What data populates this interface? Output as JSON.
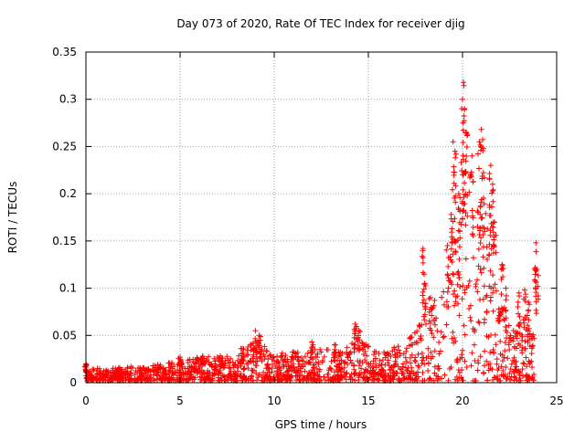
{
  "chart_data": {
    "type": "scatter",
    "title": "Day 073 of 2020, Rate Of TEC Index for receiver djig",
    "xlabel": "GPS time / hours",
    "ylabel": "ROTI / TECUs",
    "xlim": [
      0,
      25
    ],
    "ylim": [
      0,
      0.35
    ],
    "x_ticks": [
      0,
      5,
      10,
      15,
      20,
      25
    ],
    "x_tick_labels": [
      "0",
      "5",
      "10",
      "15",
      "20",
      "25"
    ],
    "y_ticks": [
      0,
      0.05,
      0.1,
      0.15,
      0.2,
      0.25,
      0.3,
      0.35
    ],
    "y_tick_labels": [
      "0",
      "0.05",
      "0.1",
      "0.15",
      "0.2",
      "0.25",
      "0.3",
      "0.35"
    ],
    "grid": true,
    "marker": "+",
    "series": [
      {
        "name": "ROTI",
        "color": "#ff0000",
        "envelope": [
          {
            "x": 0.0,
            "y": 0.012
          },
          {
            "x": 1.0,
            "y": 0.014
          },
          {
            "x": 3.0,
            "y": 0.016
          },
          {
            "x": 5.0,
            "y": 0.02
          },
          {
            "x": 6.5,
            "y": 0.028
          },
          {
            "x": 8.0,
            "y": 0.025
          },
          {
            "x": 9.0,
            "y": 0.045
          },
          {
            "x": 10.0,
            "y": 0.028
          },
          {
            "x": 12.0,
            "y": 0.035
          },
          {
            "x": 13.5,
            "y": 0.035
          },
          {
            "x": 14.5,
            "y": 0.045
          },
          {
            "x": 15.5,
            "y": 0.03
          },
          {
            "x": 17.0,
            "y": 0.04
          },
          {
            "x": 18.0,
            "y": 0.07
          },
          {
            "x": 19.0,
            "y": 0.1
          },
          {
            "x": 19.6,
            "y": 0.15
          },
          {
            "x": 20.0,
            "y": 0.2
          },
          {
            "x": 20.5,
            "y": 0.22
          },
          {
            "x": 21.0,
            "y": 0.2
          },
          {
            "x": 21.5,
            "y": 0.16
          },
          {
            "x": 22.0,
            "y": 0.08
          },
          {
            "x": 23.0,
            "y": 0.06
          },
          {
            "x": 23.8,
            "y": 0.05
          }
        ],
        "peaks": [
          {
            "x": 0.0,
            "y": 0.02
          },
          {
            "x": 5.0,
            "y": 0.027
          },
          {
            "x": 6.2,
            "y": 0.028
          },
          {
            "x": 8.3,
            "y": 0.036
          },
          {
            "x": 9.0,
            "y": 0.055
          },
          {
            "x": 9.2,
            "y": 0.05
          },
          {
            "x": 12.0,
            "y": 0.043
          },
          {
            "x": 13.2,
            "y": 0.04
          },
          {
            "x": 14.3,
            "y": 0.062
          },
          {
            "x": 14.5,
            "y": 0.055
          },
          {
            "x": 17.9,
            "y": 0.142
          },
          {
            "x": 18.0,
            "y": 0.105
          },
          {
            "x": 18.3,
            "y": 0.09
          },
          {
            "x": 19.2,
            "y": 0.145
          },
          {
            "x": 19.4,
            "y": 0.178
          },
          {
            "x": 19.5,
            "y": 0.255
          },
          {
            "x": 19.6,
            "y": 0.245
          },
          {
            "x": 19.8,
            "y": 0.2
          },
          {
            "x": 20.0,
            "y": 0.3
          },
          {
            "x": 20.05,
            "y": 0.318
          },
          {
            "x": 20.1,
            "y": 0.29
          },
          {
            "x": 20.2,
            "y": 0.265
          },
          {
            "x": 20.5,
            "y": 0.24
          },
          {
            "x": 20.9,
            "y": 0.255
          },
          {
            "x": 21.0,
            "y": 0.268
          },
          {
            "x": 21.1,
            "y": 0.248
          },
          {
            "x": 21.5,
            "y": 0.23
          },
          {
            "x": 21.6,
            "y": 0.21
          },
          {
            "x": 21.7,
            "y": 0.17
          },
          {
            "x": 22.1,
            "y": 0.125
          },
          {
            "x": 22.3,
            "y": 0.1
          },
          {
            "x": 23.0,
            "y": 0.095
          },
          {
            "x": 23.3,
            "y": 0.098
          },
          {
            "x": 23.5,
            "y": 0.085
          },
          {
            "x": 23.9,
            "y": 0.148
          },
          {
            "x": 23.95,
            "y": 0.12
          }
        ]
      }
    ]
  }
}
